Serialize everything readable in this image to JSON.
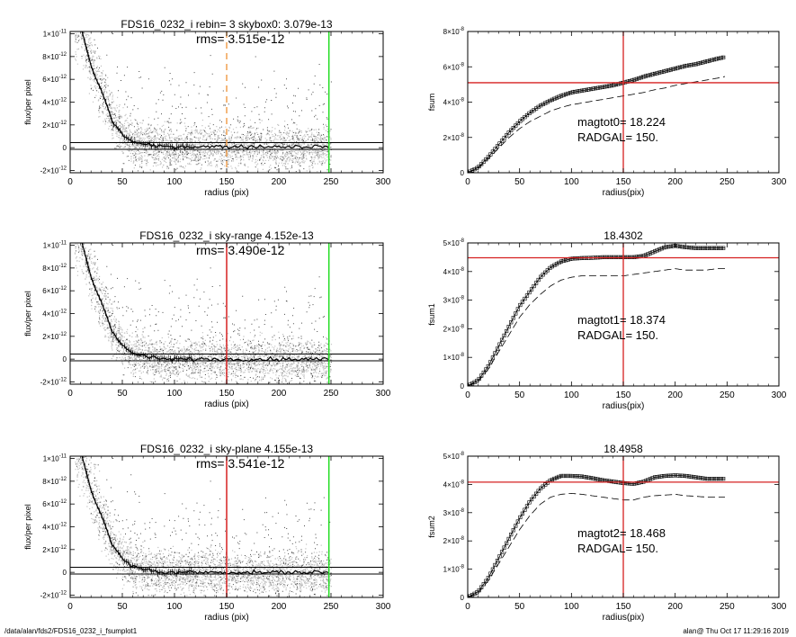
{
  "footer": {
    "path": "/data/alan/fds2/FDS16_0232_i_fsumplot1",
    "stamp": "alan@  Thu Oct 17 11:29:16 2019"
  },
  "colors": {
    "vline_dash": "#f0a050",
    "vline_red": "#d62020",
    "vline_green": "#22dd22",
    "hline_red": "#d62020",
    "scatter_dark": "#4a4a4a",
    "scatter_light": "#c2c2c2"
  },
  "chart_data": [
    {
      "type": "scatter",
      "title": "FDS16_0232_i rebin= 3    skybox0:  3.079e-13",
      "annotation": "rms= 3.515e-12",
      "xlabel": "radius (pix)",
      "ylabel": "flux/per pixel",
      "xlim": [
        0,
        300
      ],
      "ylim": [
        -2.2e-12,
        1.02e-11
      ],
      "xticks": [
        0,
        50,
        100,
        150,
        200,
        250,
        300
      ],
      "yticks": [
        {
          "v": 1e-11,
          "mant": "1×10",
          "exp": "-11"
        },
        {
          "v": 8e-12,
          "mant": "8×10",
          "exp": "-12"
        },
        {
          "v": 6e-12,
          "mant": "6×10",
          "exp": "-12"
        },
        {
          "v": 4e-12,
          "mant": "4×10",
          "exp": "-12"
        },
        {
          "v": 2e-12,
          "mant": "2×10",
          "exp": "-12"
        },
        {
          "v": 0,
          "mant": "0",
          "exp": ""
        },
        {
          "v": -2e-12,
          "mant": "-2×10",
          "exp": "-12"
        }
      ],
      "profile": {
        "x": [
          8,
          12,
          16,
          20,
          25,
          30,
          35,
          40,
          45,
          50,
          55,
          60,
          70,
          80,
          90,
          100,
          120,
          150,
          200,
          248
        ],
        "y": [
          1.1e-11,
          1e-11,
          8.6e-12,
          7.2e-12,
          6e-12,
          5e-12,
          3.8e-12,
          2.4e-12,
          1.8e-12,
          1.2e-12,
          8e-13,
          5e-13,
          3e-13,
          1.5e-13,
          1e-13,
          1e-13,
          1e-13,
          1e-13,
          1e-13,
          1e-13
        ]
      },
      "hlines": [
        4.5e-13,
        -1.5e-13
      ],
      "vlines": [
        {
          "x": 150,
          "style": "dash"
        },
        {
          "x": 248,
          "style": "green"
        }
      ]
    },
    {
      "type": "line",
      "title": "",
      "xlabel": "radius(pix)",
      "ylabel": "fsum",
      "xlim": [
        0,
        300
      ],
      "ylim": [
        0,
        8e-08
      ],
      "xticks": [
        0,
        50,
        100,
        150,
        200,
        250,
        300
      ],
      "yticks": [
        {
          "v": 0,
          "mant": "0",
          "exp": ""
        },
        {
          "v": 2e-08,
          "mant": "2×10",
          "exp": "-8"
        },
        {
          "v": 4e-08,
          "mant": "4×10",
          "exp": "-8"
        },
        {
          "v": 6e-08,
          "mant": "6×10",
          "exp": "-8"
        },
        {
          "v": 8e-08,
          "mant": "8×10",
          "exp": "-8"
        }
      ],
      "series": [
        {
          "style": "boxes",
          "x": [
            0,
            10,
            20,
            30,
            40,
            50,
            60,
            70,
            80,
            90,
            100,
            110,
            120,
            130,
            140,
            150,
            160,
            170,
            180,
            190,
            200,
            210,
            220,
            230,
            240,
            248
          ],
          "y": [
            0,
            3e-09,
            9e-09,
            1.6e-08,
            2.3e-08,
            2.9e-08,
            3.4e-08,
            3.8e-08,
            4.1e-08,
            4.35e-08,
            4.55e-08,
            4.65e-08,
            4.75e-08,
            4.85e-08,
            4.95e-08,
            5.1e-08,
            5.25e-08,
            5.45e-08,
            5.6e-08,
            5.75e-08,
            5.9e-08,
            6.05e-08,
            6.15e-08,
            6.3e-08,
            6.45e-08,
            6.55e-08
          ]
        },
        {
          "style": "dash",
          "x": [
            0,
            10,
            20,
            30,
            40,
            50,
            60,
            70,
            80,
            90,
            100,
            110,
            120,
            130,
            140,
            150,
            160,
            170,
            180,
            190,
            200,
            210,
            220,
            230,
            240,
            248
          ],
          "y": [
            0,
            2.5e-09,
            8e-09,
            1.4e-08,
            2e-08,
            2.5e-08,
            2.9e-08,
            3.2e-08,
            3.5e-08,
            3.7e-08,
            3.85e-08,
            3.95e-08,
            4.05e-08,
            4.15e-08,
            4.25e-08,
            4.35e-08,
            4.45e-08,
            4.55e-08,
            4.7e-08,
            4.8e-08,
            4.95e-08,
            5.05e-08,
            5.15e-08,
            5.25e-08,
            5.35e-08,
            5.45e-08
          ]
        }
      ],
      "hline": 5.1e-08,
      "vline": 150,
      "annotations": [
        "magtot0=  18.224",
        "RADGAL=    150."
      ]
    },
    {
      "type": "scatter",
      "title": "FDS16_0232_i sky-range  4.152e-13",
      "annotation": "rms= 3.490e-12",
      "xlabel": "radius (pix)",
      "ylabel": "flux/per pixel",
      "xlim": [
        0,
        300
      ],
      "ylim": [
        -2.2e-12,
        1.02e-11
      ],
      "xticks": [
        0,
        50,
        100,
        150,
        200,
        250,
        300
      ],
      "yticks": [
        {
          "v": 1e-11,
          "mant": "1×10",
          "exp": "-11"
        },
        {
          "v": 8e-12,
          "mant": "8×10",
          "exp": "-12"
        },
        {
          "v": 6e-12,
          "mant": "6×10",
          "exp": "-12"
        },
        {
          "v": 4e-12,
          "mant": "4×10",
          "exp": "-12"
        },
        {
          "v": 2e-12,
          "mant": "2×10",
          "exp": "-12"
        },
        {
          "v": 0,
          "mant": "0",
          "exp": ""
        },
        {
          "v": -2e-12,
          "mant": "-2×10",
          "exp": "-12"
        }
      ],
      "profile": {
        "x": [
          8,
          12,
          16,
          20,
          25,
          30,
          35,
          40,
          45,
          50,
          55,
          60,
          70,
          80,
          90,
          100,
          120,
          150,
          200,
          248
        ],
        "y": [
          1.1e-11,
          1e-11,
          8.6e-12,
          7.2e-12,
          6e-12,
          5e-12,
          3.8e-12,
          2.4e-12,
          1.8e-12,
          1.2e-12,
          8e-13,
          5e-13,
          3e-13,
          1e-13,
          0,
          0,
          0,
          0,
          0,
          0
        ]
      },
      "hlines": [
        4.5e-13,
        -1.5e-13
      ],
      "vlines": [
        {
          "x": 150,
          "style": "red"
        },
        {
          "x": 248,
          "style": "green"
        }
      ]
    },
    {
      "type": "line",
      "title": "18.4302",
      "xlabel": "radius(pix)",
      "ylabel": "fsum1",
      "xlim": [
        0,
        300
      ],
      "ylim": [
        0,
        5e-08
      ],
      "xticks": [
        0,
        50,
        100,
        150,
        200,
        250,
        300
      ],
      "yticks": [
        {
          "v": 0,
          "mant": "0",
          "exp": ""
        },
        {
          "v": 1e-08,
          "mant": "1×10",
          "exp": "-8"
        },
        {
          "v": 2e-08,
          "mant": "2×10",
          "exp": "-8"
        },
        {
          "v": 3e-08,
          "mant": "3×10",
          "exp": "-8"
        },
        {
          "v": 4e-08,
          "mant": "4×10",
          "exp": "-8"
        },
        {
          "v": 5e-08,
          "mant": "5×10",
          "exp": "-8"
        }
      ],
      "series": [
        {
          "style": "boxes",
          "x": [
            0,
            10,
            20,
            30,
            40,
            50,
            60,
            70,
            80,
            90,
            100,
            110,
            120,
            130,
            140,
            150,
            160,
            170,
            180,
            190,
            200,
            210,
            220,
            230,
            240,
            248
          ],
          "y": [
            0,
            2e-09,
            7e-09,
            1.4e-08,
            2.1e-08,
            2.8e-08,
            3.3e-08,
            3.8e-08,
            4.15e-08,
            4.35e-08,
            4.45e-08,
            4.47e-08,
            4.48e-08,
            4.5e-08,
            4.5e-08,
            4.5e-08,
            4.5e-08,
            4.55e-08,
            4.7e-08,
            4.85e-08,
            4.9e-08,
            4.85e-08,
            4.82e-08,
            4.82e-08,
            4.82e-08,
            4.82e-08
          ]
        },
        {
          "style": "dash",
          "x": [
            0,
            10,
            20,
            30,
            40,
            50,
            60,
            70,
            80,
            90,
            100,
            110,
            120,
            130,
            140,
            150,
            160,
            170,
            180,
            190,
            200,
            210,
            220,
            230,
            240,
            248
          ],
          "y": [
            0,
            1.5e-09,
            6e-09,
            1.2e-08,
            1.8e-08,
            2.4e-08,
            2.85e-08,
            3.2e-08,
            3.5e-08,
            3.7e-08,
            3.8e-08,
            3.85e-08,
            3.85e-08,
            3.85e-08,
            3.85e-08,
            3.85e-08,
            3.9e-08,
            3.95e-08,
            4e-08,
            4.05e-08,
            4.1e-08,
            4.05e-08,
            4.05e-08,
            4.05e-08,
            4.1e-08,
            4.1e-08
          ]
        }
      ],
      "hline": 4.48e-08,
      "vline": 150,
      "annotations": [
        "magtot1=  18.374",
        "RADGAL=    150."
      ]
    },
    {
      "type": "scatter",
      "title": "FDS16_0232_i sky-plane  4.155e-13",
      "annotation": "rms= 3.541e-12",
      "xlabel": "radius (pix)",
      "ylabel": "flux/per pixel",
      "xlim": [
        0,
        300
      ],
      "ylim": [
        -2.2e-12,
        1.02e-11
      ],
      "xticks": [
        0,
        50,
        100,
        150,
        200,
        250,
        300
      ],
      "yticks": [
        {
          "v": 1e-11,
          "mant": "1×10",
          "exp": "-11"
        },
        {
          "v": 8e-12,
          "mant": "8×10",
          "exp": "-12"
        },
        {
          "v": 6e-12,
          "mant": "6×10",
          "exp": "-12"
        },
        {
          "v": 4e-12,
          "mant": "4×10",
          "exp": "-12"
        },
        {
          "v": 2e-12,
          "mant": "2×10",
          "exp": "-12"
        },
        {
          "v": 0,
          "mant": "0",
          "exp": ""
        },
        {
          "v": -2e-12,
          "mant": "-2×10",
          "exp": "-12"
        }
      ],
      "profile": {
        "x": [
          8,
          12,
          16,
          20,
          25,
          30,
          35,
          40,
          45,
          50,
          55,
          60,
          70,
          80,
          90,
          100,
          120,
          150,
          200,
          248
        ],
        "y": [
          1.1e-11,
          1e-11,
          8.6e-12,
          7.2e-12,
          6e-12,
          5e-12,
          3.8e-12,
          2.4e-12,
          1.8e-12,
          1.2e-12,
          8e-13,
          5e-13,
          3e-13,
          1e-13,
          0,
          0,
          0,
          0,
          0,
          0
        ]
      },
      "hlines": [
        4.5e-13,
        -1.5e-13
      ],
      "vlines": [
        {
          "x": 150,
          "style": "red"
        },
        {
          "x": 248,
          "style": "green"
        }
      ]
    },
    {
      "type": "line",
      "title": "18.4958",
      "xlabel": "radius(pix)",
      "ylabel": "fsum2",
      "xlim": [
        0,
        300
      ],
      "ylim": [
        0,
        5e-08
      ],
      "xticks": [
        0,
        50,
        100,
        150,
        200,
        250,
        300
      ],
      "yticks": [
        {
          "v": 0,
          "mant": "0",
          "exp": ""
        },
        {
          "v": 1e-08,
          "mant": "1×10",
          "exp": "-8"
        },
        {
          "v": 2e-08,
          "mant": "2×10",
          "exp": "-8"
        },
        {
          "v": 3e-08,
          "mant": "3×10",
          "exp": "-8"
        },
        {
          "v": 4e-08,
          "mant": "4×10",
          "exp": "-8"
        },
        {
          "v": 5e-08,
          "mant": "5×10",
          "exp": "-8"
        }
      ],
      "series": [
        {
          "style": "boxes",
          "x": [
            0,
            10,
            20,
            30,
            40,
            50,
            60,
            70,
            80,
            90,
            100,
            110,
            120,
            130,
            140,
            150,
            160,
            170,
            180,
            190,
            200,
            210,
            220,
            230,
            240,
            248
          ],
          "y": [
            0,
            2e-09,
            7e-09,
            1.4e-08,
            2.1e-08,
            2.8e-08,
            3.4e-08,
            3.85e-08,
            4.15e-08,
            4.3e-08,
            4.3e-08,
            4.28e-08,
            4.22e-08,
            4.15e-08,
            4.1e-08,
            4.05e-08,
            4.02e-08,
            4.1e-08,
            4.25e-08,
            4.3e-08,
            4.32e-08,
            4.3e-08,
            4.25e-08,
            4.2e-08,
            4.2e-08,
            4.2e-08
          ]
        },
        {
          "style": "dash",
          "x": [
            0,
            10,
            20,
            30,
            40,
            50,
            60,
            70,
            80,
            90,
            100,
            110,
            120,
            130,
            140,
            150,
            160,
            170,
            180,
            190,
            200,
            210,
            220,
            230,
            240,
            248
          ],
          "y": [
            0,
            1.5e-09,
            6e-09,
            1.2e-08,
            1.8e-08,
            2.4e-08,
            2.9e-08,
            3.3e-08,
            3.55e-08,
            3.65e-08,
            3.68e-08,
            3.65e-08,
            3.6e-08,
            3.55e-08,
            3.5e-08,
            3.45e-08,
            3.45e-08,
            3.55e-08,
            3.6e-08,
            3.62e-08,
            3.65e-08,
            3.6e-08,
            3.58e-08,
            3.55e-08,
            3.55e-08,
            3.55e-08
          ]
        }
      ],
      "hline": 4.08e-08,
      "vline": 150,
      "annotations": [
        "magtot2=  18.468",
        "RADGAL=    150."
      ]
    }
  ]
}
